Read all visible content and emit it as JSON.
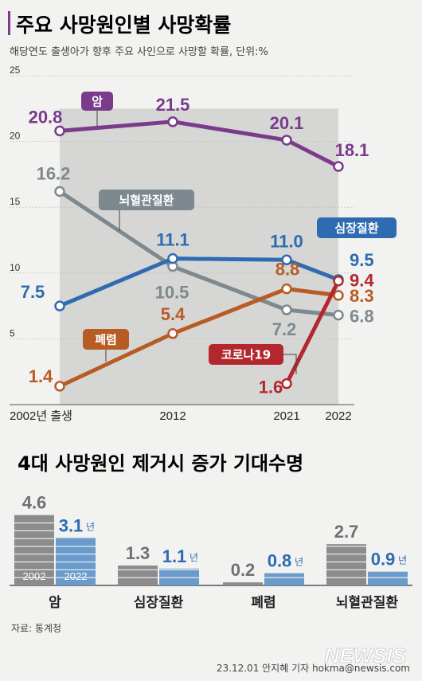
{
  "title": "주요 사망원인별 사망확률",
  "subtitle": "해당연도 출생아가 향후 주요 사인으로 사망할 확률, 단위:%",
  "subtitle2": "4대 사망원인 제거시 증가 기대수명",
  "source": "자료: 통계청",
  "credit": "23.12.01 안지혜 기자 hokma@newsis.com",
  "watermark": "NEWSIS",
  "bar_year_labels": [
    "2002",
    "2022"
  ],
  "bar_unit": "년",
  "colors": {
    "cancer": "#7b3b8c",
    "heart": "#2e6bb0",
    "pneumonia": "#b85c26",
    "cerebro": "#7d898f",
    "covid": "#b3282d",
    "bar2002": "#8c8c8c",
    "bar2022": "#6b9bcb",
    "band": "#d6d6d4"
  },
  "chart_data": [
    {
      "type": "line",
      "x": [
        "2002년 출생",
        "2012",
        "2021",
        "2022"
      ],
      "ylim": [
        0,
        25
      ],
      "yticks": [
        5,
        10,
        15,
        20,
        25
      ],
      "series": [
        {
          "name": "암",
          "key": "cancer",
          "points": [
            [
              0,
              20.8
            ],
            [
              1,
              21.5
            ],
            [
              2,
              20.1
            ],
            [
              3,
              18.1
            ]
          ],
          "labels": [
            "20.8",
            "21.5",
            "20.1",
            "18.1"
          ]
        },
        {
          "name": "뇌혈관질환",
          "key": "cerebro",
          "points": [
            [
              0,
              16.2
            ],
            [
              1,
              10.5
            ],
            [
              2,
              7.2
            ],
            [
              3,
              6.8
            ]
          ],
          "labels": [
            "16.2",
            "10.5",
            "7.2",
            "6.8"
          ]
        },
        {
          "name": "심장질환",
          "key": "heart",
          "points": [
            [
              0,
              7.5
            ],
            [
              1,
              11.1
            ],
            [
              2,
              11.0
            ],
            [
              3,
              9.5
            ]
          ],
          "labels": [
            "7.5",
            "11.1",
            "11.0",
            "9.5"
          ]
        },
        {
          "name": "폐렴",
          "key": "pneumonia",
          "points": [
            [
              0,
              1.4
            ],
            [
              1,
              5.4
            ],
            [
              2,
              8.8
            ],
            [
              3,
              8.3
            ]
          ],
          "labels": [
            "1.4",
            "5.4",
            "8.8",
            "8.3"
          ]
        },
        {
          "name": "코로나19",
          "key": "covid",
          "points": [
            [
              2,
              1.6
            ],
            [
              3,
              9.4
            ]
          ],
          "labels": [
            "1.6",
            "9.4"
          ]
        }
      ]
    },
    {
      "type": "bar",
      "categories": [
        "암",
        "심장질환",
        "폐렴",
        "뇌혈관질환"
      ],
      "series": [
        {
          "name": "2002",
          "values": [
            4.6,
            1.3,
            0.2,
            2.7
          ]
        },
        {
          "name": "2022",
          "values": [
            3.1,
            1.1,
            0.8,
            0.9
          ]
        }
      ]
    }
  ]
}
